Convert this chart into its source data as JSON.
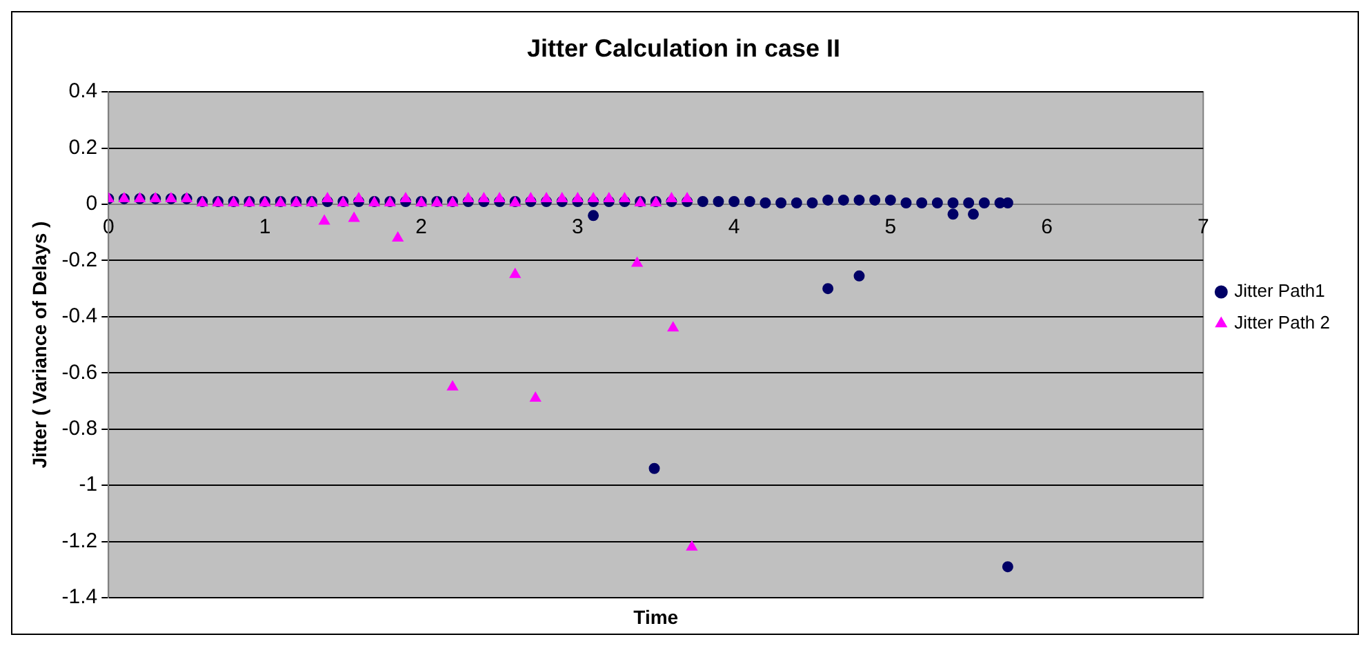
{
  "chart_data": {
    "type": "scatter",
    "title": "Jitter Calculation in case II",
    "xlabel": "Time",
    "ylabel": "Jitter ( Variance of Delays )",
    "xlim": [
      0,
      7
    ],
    "xticks": [
      0,
      1,
      2,
      3,
      4,
      5,
      6,
      7
    ],
    "ylim": [
      -1.4,
      0.4
    ],
    "yticks": [
      -1.4,
      -1.2,
      -1,
      -0.8,
      -0.6,
      -0.4,
      -0.2,
      0,
      0.2,
      0.4
    ],
    "grid": "y",
    "legend": "right",
    "series": [
      {
        "name": "Jitter Path1",
        "color": "#000066",
        "marker": "circle",
        "x": [
          0,
          0.1,
          0.2,
          0.3,
          0.4,
          0.5,
          0.6,
          0.7,
          0.8,
          0.9,
          1,
          1.1,
          1.2,
          1.3,
          1.4,
          1.5,
          1.6,
          1.7,
          1.8,
          1.9,
          2,
          2.1,
          2.2,
          2.3,
          2.4,
          2.5,
          2.6,
          2.7,
          2.8,
          2.9,
          3,
          3.1,
          3.1,
          3.2,
          3.3,
          3.4,
          3.49,
          3.5,
          3.6,
          3.7,
          3.8,
          3.9,
          4,
          4.1,
          4.2,
          4.3,
          4.4,
          4.5,
          4.6,
          4.6,
          4.7,
          4.8,
          4.8,
          4.9,
          5,
          5.1,
          5.2,
          5.3,
          5.4,
          5.4,
          5.5,
          5.53,
          5.6,
          5.7,
          5.75,
          5.75
        ],
        "values": [
          0.02,
          0.02,
          0.02,
          0.02,
          0.02,
          0.02,
          0.01,
          0.01,
          0.01,
          0.01,
          0.01,
          0.01,
          0.01,
          0.01,
          0.01,
          0.01,
          0.01,
          0.01,
          0.01,
          0.01,
          0.01,
          0.01,
          0.01,
          0.01,
          0.01,
          0.01,
          0.01,
          0.01,
          0.01,
          0.01,
          0.01,
          0.01,
          -0.04,
          0.01,
          0.01,
          0.01,
          -0.94,
          0.01,
          0.01,
          0.01,
          0.01,
          0.01,
          0.01,
          0.01,
          0.005,
          0.005,
          0.005,
          0.005,
          0.015,
          -0.3,
          0.015,
          0.015,
          -0.255,
          0.015,
          0.015,
          0.005,
          0.005,
          0.005,
          0.005,
          -0.035,
          0.005,
          -0.035,
          0.005,
          0.005,
          0.005,
          -1.29
        ]
      },
      {
        "name": "Jitter Path 2",
        "color": "#ff00ff",
        "marker": "triangle",
        "x": [
          0,
          0.1,
          0.2,
          0.3,
          0.4,
          0.5,
          0.6,
          0.7,
          0.8,
          0.9,
          1,
          1.1,
          1.2,
          1.3,
          1.38,
          1.4,
          1.5,
          1.57,
          1.6,
          1.7,
          1.8,
          1.85,
          1.9,
          2,
          2.1,
          2.2,
          2.2,
          2.3,
          2.4,
          2.5,
          2.6,
          2.6,
          2.7,
          2.73,
          2.8,
          2.9,
          3,
          3.1,
          3.2,
          3.3,
          3.38,
          3.4,
          3.5,
          3.6,
          3.61,
          3.7,
          3.73
        ],
        "values": [
          0.02,
          0.02,
          0.02,
          0.02,
          0.02,
          0.02,
          0.005,
          0.005,
          0.005,
          0.005,
          0.005,
          0.005,
          0.005,
          0.005,
          -0.06,
          0.02,
          0.005,
          -0.05,
          0.02,
          0.005,
          0.005,
          -0.12,
          0.02,
          0.005,
          0.005,
          0.005,
          -0.65,
          0.02,
          0.02,
          0.02,
          0.005,
          -0.25,
          0.02,
          -0.69,
          0.02,
          0.02,
          0.02,
          0.02,
          0.02,
          0.02,
          -0.21,
          0.005,
          0.005,
          0.02,
          -0.44,
          0.02,
          -1.22
        ]
      }
    ]
  }
}
